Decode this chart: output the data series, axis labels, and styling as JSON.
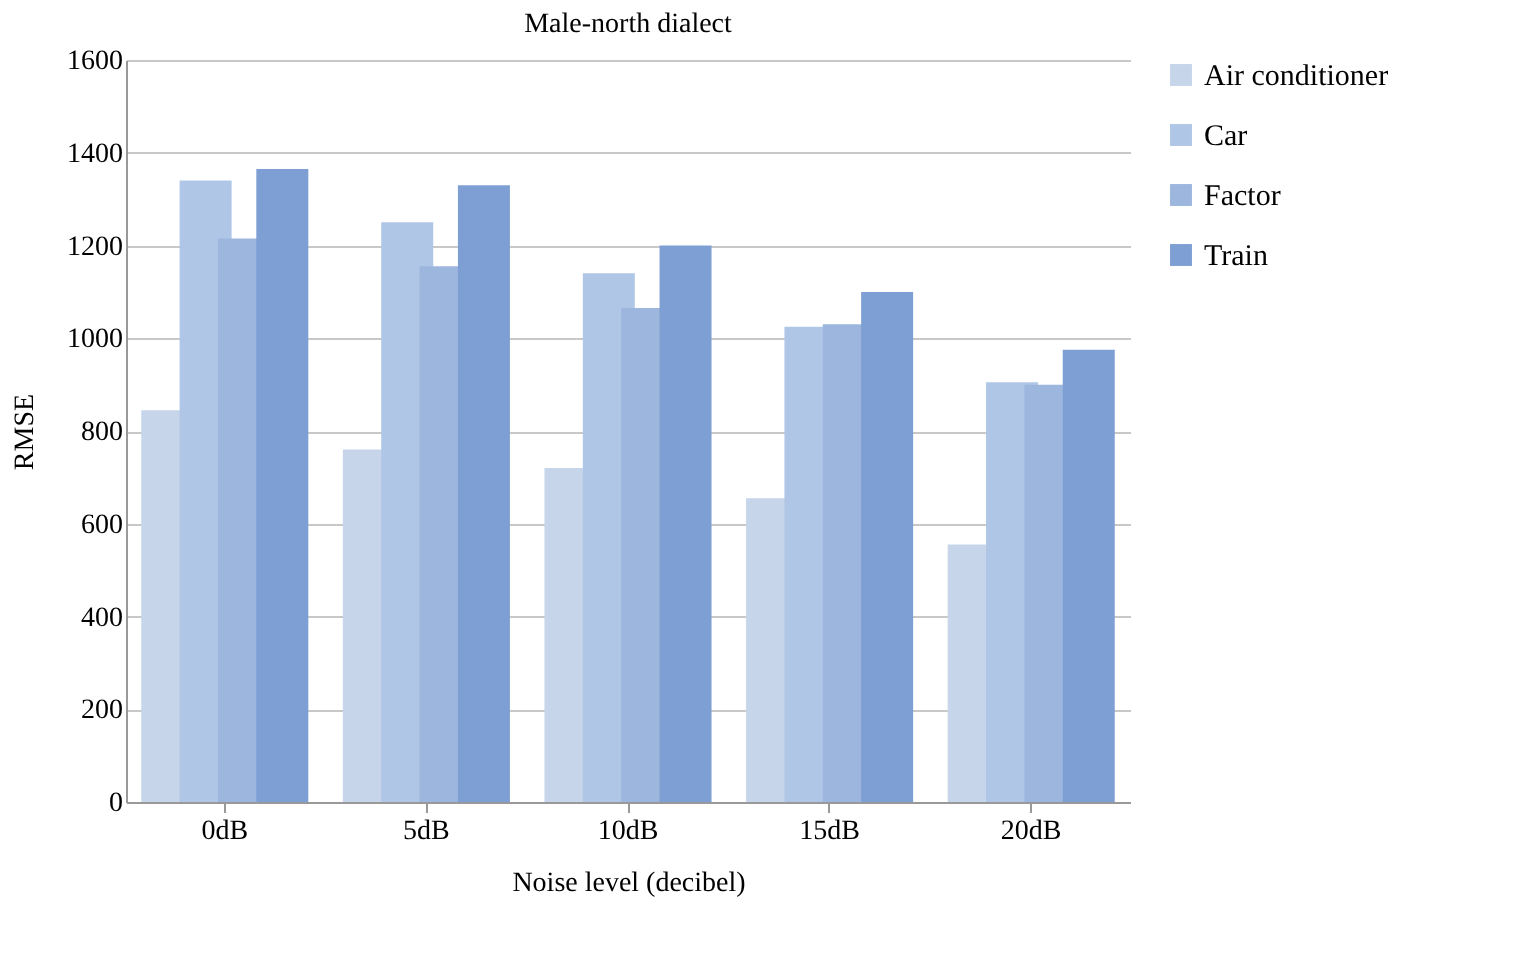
{
  "chart_data": {
    "type": "bar",
    "title": "Male-north dialect",
    "xlabel": "Noise level (decibel)",
    "ylabel": "RMSE",
    "categories": [
      "0dB",
      "5dB",
      "10dB",
      "15dB",
      "20dB"
    ],
    "series": [
      {
        "name": "Air conditioner",
        "color": "#c6d5ea",
        "values": [
          845,
          760,
          720,
          655,
          555
        ]
      },
      {
        "name": "Car",
        "color": "#b0c6e6",
        "values": [
          1340,
          1250,
          1140,
          1025,
          905
        ]
      },
      {
        "name": "Factor",
        "color": "#9db6de",
        "values": [
          1215,
          1155,
          1065,
          1030,
          900
        ]
      },
      {
        "name": "Train",
        "color": "#7d9fd3",
        "values": [
          1365,
          1330,
          1200,
          1100,
          975
        ]
      }
    ],
    "ylim": [
      0,
      1600
    ],
    "yticks": [
      0,
      200,
      400,
      600,
      800,
      1000,
      1200,
      1400,
      1600
    ],
    "grid": "y",
    "legend": "right"
  }
}
